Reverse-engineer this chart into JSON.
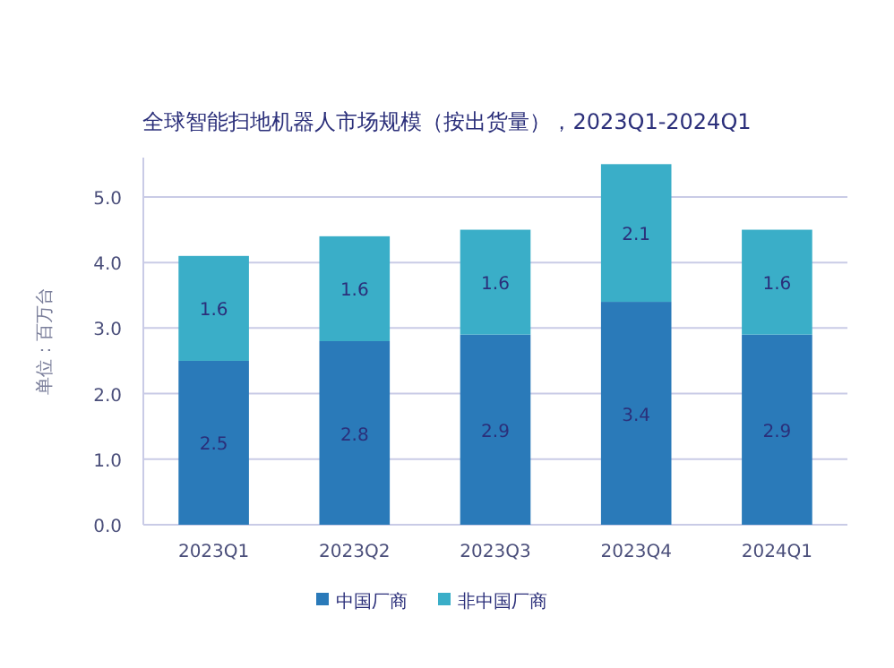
{
  "chart_data": {
    "type": "bar",
    "title": "全球智能扫地机器人市场规模（按出货量），2023Q1-2024Q1",
    "ylabel": "单位：百万台",
    "categories": [
      "2023Q1",
      "2023Q2",
      "2023Q3",
      "2023Q4",
      "2024Q1"
    ],
    "series": [
      {
        "name": "中国厂商",
        "color": "#2a7ab9",
        "values": [
          2.5,
          2.8,
          2.9,
          3.4,
          2.9
        ]
      },
      {
        "name": "非中国厂商",
        "color": "#3aaec8",
        "values": [
          1.6,
          1.6,
          1.6,
          2.1,
          1.6
        ]
      }
    ],
    "stacked": true,
    "data_labels": true,
    "ylim": [
      0,
      5.6
    ],
    "yticks": [
      {
        "value": 0,
        "label": "0.0"
      },
      {
        "value": 1,
        "label": "1.0"
      },
      {
        "value": 2,
        "label": "2.0"
      },
      {
        "value": 3,
        "label": "3.0"
      },
      {
        "value": 4,
        "label": "4.0"
      },
      {
        "value": 5,
        "label": "5.0"
      }
    ],
    "grid": "y",
    "legend": "bottom"
  }
}
